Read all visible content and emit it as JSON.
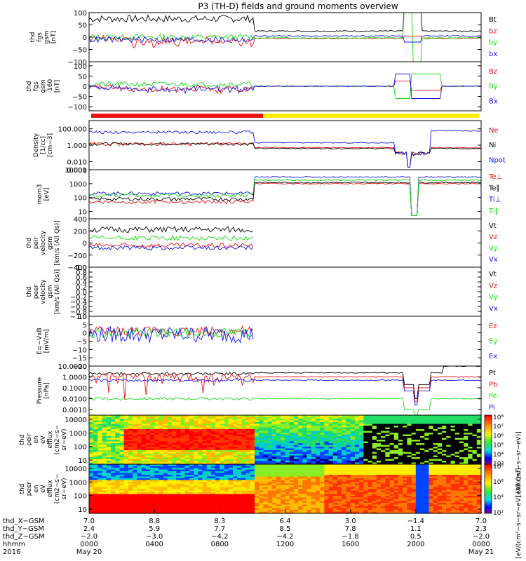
{
  "title": "P3 (TH-D) fields and ground moments overview",
  "colors": {
    "black": "#000000",
    "red": "#ee1111",
    "green": "#11dd11",
    "blue": "#1111ee",
    "yellow": "#ffee00"
  },
  "chart_data": [
    {
      "type": "line",
      "ylabel": [
        "thd",
        "fgs",
        "gsm",
        "[nT]"
      ],
      "ylim": [
        -100,
        100
      ],
      "yticks": [
        {
          "v": 100,
          "t": "100"
        },
        {
          "v": 50,
          "t": "50"
        },
        {
          "v": 0,
          "t": "0"
        },
        {
          "v": -50,
          "t": "−50"
        },
        {
          "v": -100,
          "t": "−100"
        }
      ],
      "series": [
        {
          "name": "Bt",
          "color": "black"
        },
        {
          "name": "bz",
          "color": "red"
        },
        {
          "name": "by",
          "color": "green"
        },
        {
          "name": "bx",
          "color": "blue"
        }
      ]
    },
    {
      "type": "line",
      "ylabel": [
        "thd",
        "fgs",
        "gsm",
        "-160",
        "[nT]"
      ],
      "ylim": [
        -120,
        120
      ],
      "yticks": [
        {
          "v": 100,
          "t": "100"
        },
        {
          "v": 50,
          "t": "50"
        },
        {
          "v": 0,
          "t": "0"
        },
        {
          "v": -50,
          "t": "−50"
        },
        {
          "v": -100,
          "t": "−100"
        }
      ],
      "series": [
        {
          "name": "Bz",
          "color": "red"
        },
        {
          "name": "By",
          "color": "green"
        },
        {
          "name": "Bx",
          "color": "blue"
        }
      ]
    },
    {
      "type": "line",
      "log": true,
      "ylabel": [
        "Density",
        "[1/cc]",
        "[cm−3]"
      ],
      "ylim": [
        0.001,
        1000
      ],
      "yticks": [
        {
          "v": 100,
          "t": "100.000"
        },
        {
          "v": 1,
          "t": "1.000"
        },
        {
          "v": 0.01,
          "t": "0.010"
        },
        {
          "v": 0.001,
          "t": "0.001"
        }
      ],
      "series": [
        {
          "name": "Ne",
          "color": "red"
        },
        {
          "name": "Ni",
          "color": "black"
        },
        {
          "name": "Npot",
          "color": "blue"
        }
      ]
    },
    {
      "type": "line",
      "log": true,
      "ylabel": [
        "mom3",
        "[eV]"
      ],
      "ylim": [
        3,
        10000
      ],
      "yticks": [
        {
          "v": 10000,
          "t": "10000"
        },
        {
          "v": 1000,
          "t": "1000"
        },
        {
          "v": 100,
          "t": "100"
        },
        {
          "v": 10,
          "t": "10"
        }
      ],
      "series": [
        {
          "name": "Te⊥",
          "color": "red"
        },
        {
          "name": "Te∥",
          "color": "black"
        },
        {
          "name": "Ti⊥",
          "color": "blue"
        },
        {
          "name": "Ti∥",
          "color": "green"
        }
      ]
    },
    {
      "type": "line",
      "ylabel": [
        "thd",
        "peir",
        "velocity",
        "gsm",
        "[km/s (All Qs)]"
      ],
      "ylim": [
        -400,
        400
      ],
      "yticks": [
        {
          "v": 400,
          "t": "400"
        },
        {
          "v": 200,
          "t": "200"
        },
        {
          "v": 0,
          "t": "0"
        },
        {
          "v": -200,
          "t": "−200"
        },
        {
          "v": -400,
          "t": "−400"
        }
      ],
      "series": [
        {
          "name": "Vt",
          "color": "black"
        },
        {
          "name": "Vz",
          "color": "red"
        },
        {
          "name": "Vy",
          "color": "green"
        },
        {
          "name": "Vx",
          "color": "blue"
        }
      ]
    },
    {
      "type": "line",
      "ylabel": [
        "thd",
        "peer",
        "velocity",
        "gsm",
        "[km/s (All Qs)]"
      ],
      "ylim": [
        -1,
        1
      ],
      "yticks": [
        {
          "v": 1,
          "t": "1.0"
        },
        {
          "v": 0.8,
          "t": "0.8"
        },
        {
          "v": 0.6,
          "t": "0.6"
        },
        {
          "v": 0.4,
          "t": "0.4"
        },
        {
          "v": 0.2,
          "t": "0.2"
        },
        {
          "v": 0,
          "t": "0.0"
        },
        {
          "v": -0.2,
          "t": "−0.2"
        },
        {
          "v": -0.4,
          "t": "−0.4"
        },
        {
          "v": -0.6,
          "t": "−0.6"
        },
        {
          "v": -0.8,
          "t": "−0.8"
        },
        {
          "v": -1,
          "t": "−1.0"
        }
      ],
      "series": [
        {
          "name": "Vt",
          "color": "black"
        },
        {
          "name": "Vz",
          "color": "red"
        },
        {
          "name": "Vy",
          "color": "green"
        },
        {
          "name": "Vx",
          "color": "blue"
        }
      ]
    },
    {
      "type": "line",
      "ylabel": [
        "E=−VxB",
        "[mV/m]"
      ],
      "ylim": [
        -20,
        10
      ],
      "yticks": [
        {
          "v": 10,
          "t": "10"
        },
        {
          "v": 5,
          "t": "5"
        },
        {
          "v": 0,
          "t": "0"
        },
        {
          "v": -5,
          "t": "−5"
        },
        {
          "v": -10,
          "t": "−10"
        },
        {
          "v": -15,
          "t": "−15"
        },
        {
          "v": -20,
          "t": "−20"
        }
      ],
      "series": [
        {
          "name": "Ez",
          "color": "red"
        },
        {
          "name": "Ey",
          "color": "green"
        },
        {
          "name": "Ex",
          "color": "blue"
        }
      ]
    },
    {
      "type": "line",
      "log": true,
      "ylabel": [
        "Pressure",
        "[nPa]"
      ],
      "ylim": [
        0.0003,
        10
      ],
      "yticks": [
        {
          "v": 10,
          "t": "10.0000"
        },
        {
          "v": 1,
          "t": "1.0000"
        },
        {
          "v": 0.1,
          "t": "0.1000"
        },
        {
          "v": 0.01,
          "t": "0.0100"
        },
        {
          "v": 0.001,
          "t": "0.0010"
        }
      ],
      "series": [
        {
          "name": "Pt",
          "color": "black"
        },
        {
          "name": "Pb",
          "color": "red"
        },
        {
          "name": "Pe",
          "color": "green"
        },
        {
          "name": "Pi",
          "color": "blue"
        }
      ]
    },
    {
      "type": "heatmap",
      "ylabel": [
        "thd",
        "peir",
        "en",
        "eV",
        "efflux",
        "(cm2−s−",
        "sr−eV)"
      ],
      "log": true,
      "ylim": [
        5,
        20000
      ],
      "yticks": [
        {
          "v": 10000,
          "t": "10000"
        },
        {
          "v": 1000,
          "t": "1000"
        },
        {
          "v": 100,
          "t": "100"
        },
        {
          "v": 10,
          "t": "10"
        }
      ],
      "colorbar": {
        "ticks": [
          "10⁸",
          "10⁷",
          "10⁶",
          "10⁵",
          "10⁴",
          "10³"
        ],
        "label": "[eV/(cm²−s−sr−eV)]"
      }
    },
    {
      "type": "heatmap",
      "ylabel": [
        "thd",
        "peer",
        "en",
        "eV",
        "efflux",
        "(cm2−s−",
        "sr−eV)"
      ],
      "log": true,
      "ylim": [
        5,
        20000
      ],
      "yticks": [
        {
          "v": 10000,
          "t": "10000"
        },
        {
          "v": 1000,
          "t": "1000"
        },
        {
          "v": 100,
          "t": "100"
        },
        {
          "v": 10,
          "t": "10"
        }
      ],
      "colorbar": {
        "ticks": [
          "10⁸",
          "10⁶",
          "10⁴",
          "10²"
        ],
        "label": "[eV/(cm²−s−sr−eV) (All Qs)]"
      }
    }
  ],
  "xaxis": {
    "row_labels": [
      "thd_X−GSM",
      "thd_Y−GSM",
      "thd_Z−GSM",
      "hhmm",
      "2016"
    ],
    "ticks": [
      {
        "r": [
          "7.0",
          "2.4",
          "−2.0",
          "0000",
          "May 20"
        ]
      },
      {
        "r": [
          "8.8",
          "5.9",
          "−3.0",
          "0400",
          ""
        ]
      },
      {
        "r": [
          "8.3",
          "7.7",
          "−4.2",
          "0800",
          ""
        ]
      },
      {
        "r": [
          "6.4",
          "8.5",
          "−4.2",
          "1200",
          ""
        ]
      },
      {
        "r": [
          "3.0",
          "7.8",
          "−1.8",
          "1600",
          ""
        ]
      },
      {
        "r": [
          "−1.4",
          "1.1",
          "0.5",
          "2000",
          ""
        ]
      },
      {
        "r": [
          "7.0",
          "2.3",
          "−2.0",
          "0000",
          "May 21"
        ]
      }
    ]
  }
}
